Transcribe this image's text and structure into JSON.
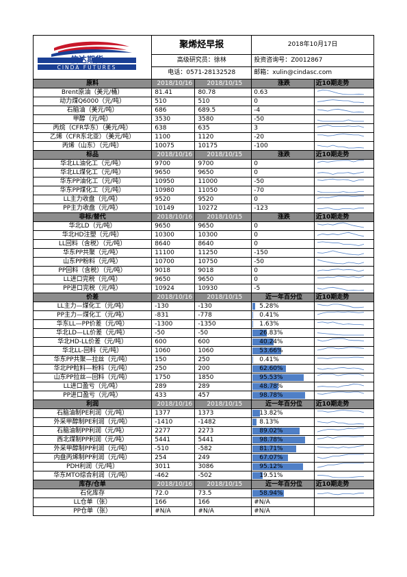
{
  "header": {
    "logo_text": "信达期货",
    "logo_subtext": "CINDA FUTURES",
    "title": "聚烯烃早报",
    "date": "2018年10月17日",
    "analyst": "高级研究员：徐林",
    "license": "投资咨询号：Z0012867",
    "phone": "电话：0571-28132528",
    "email": "邮箱：xulin@cindasc.com"
  },
  "sections": [
    {
      "header": [
        "原料",
        "2018/10/16",
        "2018/10/15",
        "涨跌",
        "近10期走势"
      ],
      "rows": [
        {
          "name": "Brent原油（美元/桶）",
          "v1": "81.41",
          "v2": "80.78",
          "chg": "0.63"
        },
        {
          "name": "动力煤Q6000（元/吨）",
          "v1": "510",
          "v2": "510",
          "chg": "0"
        },
        {
          "name": "石脑油（美元/吨）",
          "v1": "686",
          "v2": "689.5",
          "chg": "-4"
        },
        {
          "name": "甲醇（元/吨）",
          "v1": "3530",
          "v2": "3580",
          "chg": "-50"
        },
        {
          "name": "丙烷（CFR华东）（美元/吨）",
          "v1": "638",
          "v2": "635",
          "chg": "3"
        },
        {
          "name": "乙烯（CFR东北亚）（美元/吨）",
          "v1": "1100",
          "v2": "1120",
          "chg": "-20"
        },
        {
          "name": "丙烯（山东）（元/吨）",
          "v1": "10075",
          "v2": "10175",
          "chg": "-100"
        }
      ]
    },
    {
      "header": [
        "标品",
        "2018/10/16",
        "2018/10/15",
        "涨跌",
        "近10期走势"
      ],
      "rows": [
        {
          "name": "华北LL油化工（元/吨）",
          "v1": "9700",
          "v2": "9700",
          "chg": "0"
        },
        {
          "name": "华北LL煤化工（元/吨）",
          "v1": "9650",
          "v2": "9650",
          "chg": "0"
        },
        {
          "name": "华东PP油化工（元/吨）",
          "v1": "10950",
          "v2": "11000",
          "chg": "-50"
        },
        {
          "name": "华东PP煤化工（元/吨）",
          "v1": "10980",
          "v2": "11050",
          "chg": "-70"
        },
        {
          "name": "LL主力收盘（元/吨）",
          "v1": "9520",
          "v2": "9520",
          "chg": "0"
        },
        {
          "name": "PP主力收盘（元/吨）",
          "v1": "10149",
          "v2": "10272",
          "chg": "-123"
        }
      ]
    },
    {
      "header": [
        "非标/替代",
        "2018/10/16",
        "2018/10/15",
        "涨跌",
        "近10期走势"
      ],
      "rows": [
        {
          "name": "华北LD（元/吨）",
          "v1": "9650",
          "v2": "9650",
          "chg": "0"
        },
        {
          "name": "华北HD注塑（元/吨）",
          "v1": "10300",
          "v2": "10300",
          "chg": "0"
        },
        {
          "name": "LL回料（含税）（元/吨）",
          "v1": "8640",
          "v2": "8640",
          "chg": "0"
        },
        {
          "name": "华东PP共聚（元/吨）",
          "v1": "11100",
          "v2": "11250",
          "chg": "-150"
        },
        {
          "name": "山东PP粉料（元/吨）",
          "v1": "10700",
          "v2": "10750",
          "chg": "-50"
        },
        {
          "name": "PP回料（含税）（元/吨）",
          "v1": "9018",
          "v2": "9018",
          "chg": "0"
        },
        {
          "name": "LL进口完税（元/吨）",
          "v1": "9650",
          "v2": "9650",
          "chg": "0"
        },
        {
          "name": "PP进口完税（元/吨）",
          "v1": "10924",
          "v2": "10930",
          "chg": "-5"
        }
      ]
    },
    {
      "header": [
        "价差",
        "2018/10/16",
        "2018/10/15",
        "近一年百分位",
        "近10期走势"
      ],
      "rows": [
        {
          "name": "LL主力—煤化工（元/吨）",
          "v1": "-130",
          "v2": "-130",
          "chg": "5.28%",
          "pct": 5.28
        },
        {
          "name": "PP主力—煤化工（元/吨）",
          "v1": "-831",
          "v2": "-778",
          "chg": "0.41%",
          "pct": 0.41
        },
        {
          "name": "华东LL—PP价差（元/吨）",
          "v1": "-1300",
          "v2": "-1350",
          "chg": "1.63%",
          "pct": 1.63
        },
        {
          "name": "华北LD—LL价差（元/吨）",
          "v1": "-50",
          "v2": "-50",
          "chg": "26.83%",
          "pct": 26.83
        },
        {
          "name": "华北HD-LL价差（元/吨）",
          "v1": "600",
          "v2": "600",
          "chg": "40.24%",
          "pct": 40.24
        },
        {
          "name": "华北LL-回料（元/吨）",
          "v1": "1060",
          "v2": "1060",
          "chg": "53.66%",
          "pct": 53.66
        },
        {
          "name": "华东PP共聚—拉丝（元/吨）",
          "v1": "150",
          "v2": "250",
          "chg": "0.41%",
          "pct": 0.41
        },
        {
          "name": "华北PP粒料—粉料（元/吨）",
          "v1": "250",
          "v2": "200",
          "chg": "62.60%",
          "pct": 62.6
        },
        {
          "name": "山东PP拉丝—回料（元/吨）",
          "v1": "1750",
          "v2": "1850",
          "chg": "95.53%",
          "pct": 95.53
        },
        {
          "name": "LL进口盈亏（元/吨）",
          "v1": "289",
          "v2": "289",
          "chg": "48.78%",
          "pct": 48.78
        },
        {
          "name": "PP进口盈亏（元/吨）",
          "v1": "433",
          "v2": "457",
          "chg": "98.78%",
          "pct": 98.78
        }
      ]
    },
    {
      "header": [
        "利润",
        "2018/10/16",
        "2018/10/15",
        "近一年百分位",
        "近10期走势"
      ],
      "rows": [
        {
          "name": "石脑油制PE利润（元/吨）",
          "v1": "1377",
          "v2": "1373",
          "chg": "13.82%",
          "pct": 13.82
        },
        {
          "name": "外采甲醇制PE利润（元/吨）",
          "v1": "-1410",
          "v2": "-1482",
          "chg": "8.13%",
          "pct": 8.13
        },
        {
          "name": "石脑油制PP利润（元/吨）",
          "v1": "2277",
          "v2": "2273",
          "chg": "89.02%",
          "pct": 89.02
        },
        {
          "name": "西北煤制PP利润（元/吨）",
          "v1": "5441",
          "v2": "5441",
          "chg": "98.78%",
          "pct": 98.78
        },
        {
          "name": "外采甲醇制PP利润（元/吨）",
          "v1": "-510",
          "v2": "-582",
          "chg": "81.71%",
          "pct": 81.71
        },
        {
          "name": "内盘丙烯制PP利润（元/吨）",
          "v1": "254",
          "v2": "249",
          "chg": "67.07%",
          "pct": 67.07
        },
        {
          "name": "PDH利润（元/吨）",
          "v1": "3011",
          "v2": "3086",
          "chg": "95.12%",
          "pct": 95.12
        },
        {
          "name": "华东MTO综合利润（元/吨）",
          "v1": "-462",
          "v2": "-502",
          "chg": "19.51%",
          "pct": 19.51
        }
      ]
    },
    {
      "header": [
        "库存/仓单",
        "2018/10/16",
        "2018/10/15",
        "近一年百分位",
        "近10期走势"
      ],
      "rows": [
        {
          "name": "石化库存",
          "v1": "72.0",
          "v2": "73.5",
          "chg": "58.94%",
          "pct": 58.94
        },
        {
          "name": "LL仓单（张）",
          "v1": "166",
          "v2": "166",
          "chg": "#N/A"
        },
        {
          "name": "PP仓单（张）",
          "v1": "#N/A",
          "v2": "#N/A",
          "chg": "#N/A"
        }
      ]
    }
  ],
  "colors": {
    "section_bg": "#8c8c8c",
    "bar": "#4f7fc6",
    "logo_red": "#c8182a",
    "logo_blue": "#1a3f94"
  }
}
